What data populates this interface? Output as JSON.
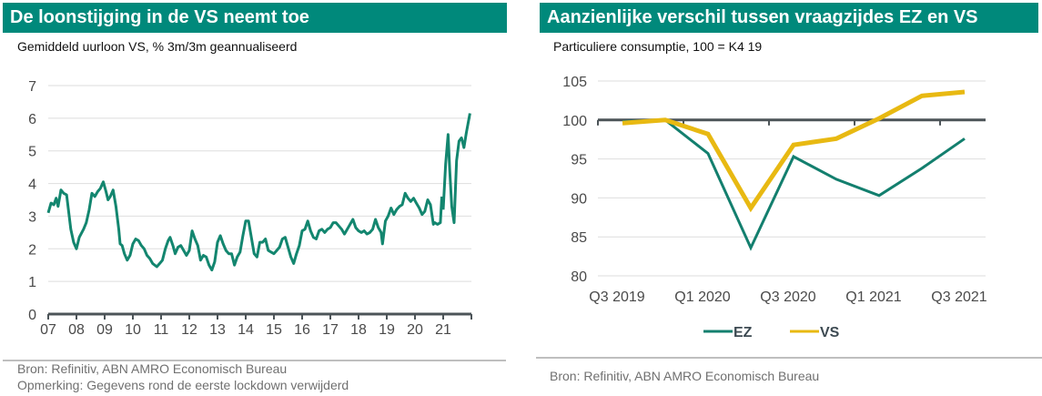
{
  "colors": {
    "header_bg": "#00897b",
    "ez_line": "#137f6e",
    "vs_line": "#e8b912",
    "wage_line": "#13866f",
    "axis": "#4c5458",
    "grid": "#dedede"
  },
  "left_panel": {
    "title": "De loonstijging in de VS neemt toe",
    "subtitle": "Gemiddeld uurloon VS, % 3m/3m geannualiseerd",
    "source": "Bron: Refinitiv, ABN AMRO Economisch Bureau",
    "note": "Opmerking: Gegevens rond de eerste lockdown verwijderd"
  },
  "right_panel": {
    "title": "Aanzienlijke verschil tussen vraagzijdes EZ en VS",
    "subtitle": "Particuliere consumptie, 100 = K4 19",
    "source": "Bron: Refinitiv, ABN AMRO Economisch Bureau"
  },
  "chart_data": [
    {
      "type": "line",
      "title": "De loonstijging in de VS neemt toe",
      "subtitle": "Gemiddeld uurloon VS, % 3m/3m geannualiseerd",
      "xlabel": "",
      "ylabel": "",
      "xlim": [
        2007,
        2022
      ],
      "ylim": [
        0,
        7
      ],
      "yticks": [
        "0",
        "1",
        "2",
        "3",
        "4",
        "5",
        "6",
        "7"
      ],
      "xticks": [
        "07",
        "08",
        "09",
        "10",
        "11",
        "12",
        "13",
        "14",
        "15",
        "16",
        "17",
        "18",
        "19",
        "20",
        "21"
      ],
      "grid": true,
      "legend": "none",
      "series": [
        {
          "name": "Gemiddeld uurloon VS",
          "segments": [
            [
              [
                2007.0,
                3.1
              ],
              [
                2007.1,
                3.4
              ],
              [
                2007.2,
                3.35
              ],
              [
                2007.28,
                3.55
              ],
              [
                2007.35,
                3.3
              ],
              [
                2007.45,
                3.8
              ],
              [
                2007.55,
                3.7
              ],
              [
                2007.65,
                3.65
              ],
              [
                2007.8,
                2.6
              ],
              [
                2007.9,
                2.2
              ],
              [
                2008.0,
                2.0
              ],
              [
                2008.1,
                2.35
              ],
              [
                2008.25,
                2.6
              ],
              [
                2008.35,
                2.8
              ],
              [
                2008.45,
                3.2
              ],
              [
                2008.55,
                3.7
              ],
              [
                2008.65,
                3.6
              ],
              [
                2008.75,
                3.75
              ],
              [
                2008.85,
                3.85
              ],
              [
                2008.95,
                4.05
              ],
              [
                2009.05,
                3.75
              ],
              [
                2009.12,
                3.5
              ],
              [
                2009.2,
                3.6
              ],
              [
                2009.3,
                3.8
              ],
              [
                2009.4,
                3.3
              ],
              [
                2009.5,
                2.6
              ],
              [
                2009.55,
                2.15
              ],
              [
                2009.62,
                2.1
              ],
              [
                2009.7,
                1.85
              ],
              [
                2009.8,
                1.65
              ],
              [
                2009.9,
                1.8
              ],
              [
                2010.0,
                2.15
              ],
              [
                2010.1,
                2.3
              ],
              [
                2010.2,
                2.25
              ],
              [
                2010.3,
                2.1
              ],
              [
                2010.4,
                2.0
              ],
              [
                2010.5,
                1.8
              ],
              [
                2010.6,
                1.7
              ],
              [
                2010.7,
                1.55
              ],
              [
                2010.85,
                1.45
              ],
              [
                2010.95,
                1.55
              ],
              [
                2011.05,
                1.65
              ],
              [
                2011.15,
                2.0
              ],
              [
                2011.25,
                2.25
              ],
              [
                2011.32,
                2.35
              ],
              [
                2011.42,
                2.1
              ],
              [
                2011.5,
                1.85
              ],
              [
                2011.6,
                2.05
              ],
              [
                2011.7,
                2.1
              ],
              [
                2011.8,
                1.95
              ],
              [
                2011.9,
                1.8
              ],
              [
                2012.0,
                1.95
              ],
              [
                2012.1,
                2.55
              ],
              [
                2012.2,
                2.3
              ],
              [
                2012.3,
                2.1
              ],
              [
                2012.4,
                1.65
              ],
              [
                2012.5,
                1.8
              ],
              [
                2012.6,
                1.75
              ],
              [
                2012.7,
                1.5
              ],
              [
                2012.8,
                1.35
              ],
              [
                2012.9,
                1.6
              ],
              [
                2013.0,
                2.2
              ],
              [
                2013.1,
                2.4
              ],
              [
                2013.2,
                2.15
              ],
              [
                2013.3,
                1.95
              ],
              [
                2013.4,
                1.85
              ],
              [
                2013.5,
                1.85
              ],
              [
                2013.6,
                1.5
              ],
              [
                2013.7,
                1.75
              ],
              [
                2013.8,
                1.9
              ],
              [
                2013.9,
                2.4
              ],
              [
                2014.0,
                2.85
              ],
              [
                2014.1,
                2.85
              ],
              [
                2014.2,
                2.35
              ],
              [
                2014.3,
                1.85
              ],
              [
                2014.4,
                1.75
              ],
              [
                2014.5,
                2.2
              ],
              [
                2014.6,
                2.2
              ],
              [
                2014.7,
                2.3
              ],
              [
                2014.8,
                1.95
              ],
              [
                2014.9,
                1.9
              ],
              [
                2015.0,
                1.85
              ],
              [
                2015.1,
                1.95
              ],
              [
                2015.2,
                2.05
              ],
              [
                2015.3,
                2.3
              ],
              [
                2015.4,
                2.35
              ],
              [
                2015.5,
                2.05
              ],
              [
                2015.6,
                1.75
              ],
              [
                2015.7,
                1.55
              ],
              [
                2015.8,
                1.85
              ],
              [
                2015.9,
                2.1
              ],
              [
                2016.0,
                2.55
              ],
              [
                2016.1,
                2.6
              ],
              [
                2016.2,
                2.85
              ],
              [
                2016.3,
                2.55
              ],
              [
                2016.4,
                2.35
              ],
              [
                2016.5,
                2.3
              ],
              [
                2016.6,
                2.55
              ],
              [
                2016.7,
                2.6
              ],
              [
                2016.8,
                2.5
              ],
              [
                2016.9,
                2.6
              ],
              [
                2017.0,
                2.65
              ],
              [
                2017.1,
                2.8
              ],
              [
                2017.2,
                2.8
              ],
              [
                2017.3,
                2.7
              ],
              [
                2017.4,
                2.6
              ],
              [
                2017.5,
                2.45
              ],
              [
                2017.6,
                2.6
              ],
              [
                2017.7,
                2.75
              ],
              [
                2017.8,
                2.9
              ],
              [
                2017.9,
                2.65
              ],
              [
                2018.0,
                2.55
              ],
              [
                2018.1,
                2.5
              ],
              [
                2018.2,
                2.55
              ],
              [
                2018.3,
                2.45
              ],
              [
                2018.4,
                2.5
              ],
              [
                2018.5,
                2.6
              ],
              [
                2018.6,
                2.9
              ],
              [
                2018.7,
                2.65
              ],
              [
                2018.8,
                2.5
              ],
              [
                2018.85,
                2.15
              ],
              [
                2018.95,
                2.85
              ],
              [
                2019.05,
                3.0
              ],
              [
                2019.15,
                3.25
              ],
              [
                2019.25,
                3.05
              ],
              [
                2019.35,
                3.2
              ],
              [
                2019.45,
                3.3
              ],
              [
                2019.55,
                3.35
              ],
              [
                2019.65,
                3.7
              ],
              [
                2019.75,
                3.55
              ],
              [
                2019.85,
                3.45
              ],
              [
                2019.95,
                3.55
              ],
              [
                2020.05,
                3.4
              ],
              [
                2020.15,
                3.25
              ],
              [
                2020.25,
                3.05
              ],
              [
                2020.35,
                3.15
              ],
              [
                2020.45,
                3.5
              ],
              [
                2020.55,
                3.35
              ],
              [
                2020.65,
                2.75
              ],
              [
                2020.7,
                2.8
              ],
              [
                2020.8,
                2.75
              ],
              [
                2020.9,
                2.8
              ],
              [
                2020.95,
                3.6
              ]
            ],
            [
              [
                2021.7,
                3.2
              ],
              [
                2021.8,
                4.6
              ],
              [
                2021.9,
                5.5
              ],
              [
                2021.97,
                4.4
              ],
              [
                2022.05,
                3.3
              ],
              [
                2022.15,
                2.8
              ],
              [
                2022.25,
                4.7
              ],
              [
                2022.35,
                5.3
              ],
              [
                2022.45,
                5.4
              ],
              [
                2022.55,
                5.1
              ],
              [
                2022.65,
                5.55
              ],
              [
                2022.8,
                6.15
              ]
            ]
          ]
        }
      ]
    },
    {
      "type": "line",
      "title": "Aanzienlijke verschil tussen vraagzijdes EZ en VS",
      "subtitle": "Particuliere consumptie, 100 = K4 19",
      "xlabel": "",
      "ylabel": "",
      "categories": [
        "Q3 2019",
        "Q4 2019",
        "Q1 2020",
        "Q2 2020",
        "Q3 2020",
        "Q4 2020",
        "Q1 2021",
        "Q2 2021",
        "Q3 2021"
      ],
      "xtick_labels": [
        "Q3 2019",
        "Q1 2020",
        "Q3 2020",
        "Q1 2021",
        "Q3 2021"
      ],
      "ylim": [
        80,
        105
      ],
      "yticks": [
        "80",
        "85",
        "90",
        "95",
        "100",
        "105"
      ],
      "baseline": 100,
      "grid": true,
      "legend": "bottom",
      "series": [
        {
          "name": "EZ",
          "values": [
            99.8,
            100.0,
            95.7,
            83.6,
            95.3,
            92.4,
            90.3,
            93.8,
            97.6
          ]
        },
        {
          "name": "VS",
          "values": [
            99.6,
            100.0,
            98.2,
            88.7,
            96.8,
            97.6,
            100.2,
            103.1,
            103.6
          ]
        }
      ]
    }
  ]
}
